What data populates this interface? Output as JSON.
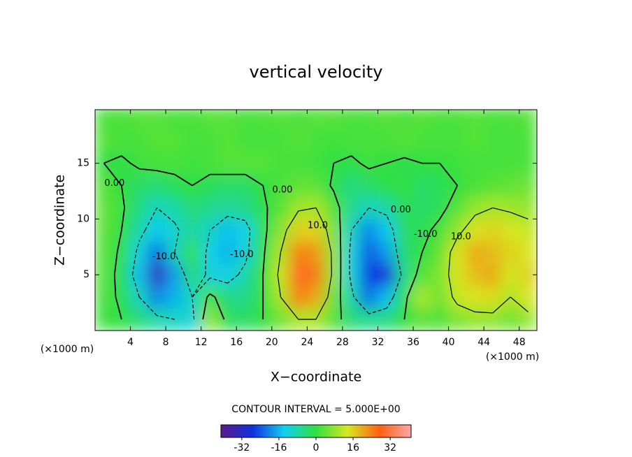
{
  "chart_data": {
    "type": "contour",
    "title": "vertical velocity",
    "x_label": "X−coordinate",
    "y_label": "Z−coordinate",
    "x_unit": "(×1000 m)",
    "y_unit": "(×1000 m)",
    "x": [
      1,
      3,
      5,
      7,
      9,
      11,
      13,
      15,
      17,
      19,
      21,
      23,
      25,
      27,
      29,
      31,
      33,
      35,
      37,
      39,
      41,
      43,
      45,
      47,
      49
    ],
    "z": [
      1,
      3,
      5,
      7,
      9,
      11,
      13,
      15,
      17,
      19
    ],
    "values": [
      [
        1,
        0,
        -4,
        -8,
        -10,
        -12,
        8,
        -2,
        -3,
        0,
        5,
        10,
        10,
        3,
        -4,
        -6,
        -5,
        0,
        4,
        2,
        6,
        8,
        8,
        5,
        8
      ],
      [
        2,
        -1,
        -10,
        -20,
        -16,
        -10,
        2,
        -5,
        -6,
        0,
        10,
        24,
        20,
        5,
        -8,
        -22,
        -15,
        -2,
        10,
        5,
        12,
        14,
        15,
        10,
        14
      ],
      [
        3,
        -2,
        -15,
        -33,
        -18,
        -4,
        -12,
        -13,
        -8,
        0,
        12,
        29,
        25,
        8,
        -12,
        -26,
        -28,
        -6,
        3,
        6,
        14,
        18,
        20,
        13,
        16
      ],
      [
        3,
        -1,
        -12,
        -22,
        -10,
        0,
        -13,
        -16,
        -12,
        -1,
        10,
        24,
        22,
        8,
        -12,
        -24,
        -18,
        -4,
        0,
        4,
        14,
        20,
        18,
        16,
        14
      ],
      [
        4,
        0,
        -8,
        -14,
        -11,
        -7,
        -10,
        -15,
        -13,
        -2,
        7,
        16,
        16,
        6,
        -10,
        -20,
        -14,
        -3,
        -2,
        2,
        8,
        14,
        16,
        14,
        12
      ],
      [
        4,
        1,
        -5,
        -10,
        -8,
        -4,
        -6,
        -7,
        -6,
        -1,
        3,
        9,
        10,
        3,
        -6,
        -10,
        -8,
        -2,
        -3,
        -2,
        3,
        8,
        10,
        9,
        8
      ],
      [
        3,
        0,
        -3,
        -4,
        -2,
        0,
        -2,
        -3,
        -3,
        0,
        2,
        4,
        4,
        -1,
        -5,
        -3,
        -1,
        0,
        -3,
        -2,
        0,
        2,
        3,
        4,
        5
      ],
      [
        0,
        -1,
        1,
        2,
        2,
        1,
        2,
        3,
        3,
        3,
        2,
        2,
        1,
        0,
        -1,
        1,
        0,
        -1,
        0,
        0,
        1,
        2,
        2,
        2,
        2
      ],
      [
        3,
        2,
        2,
        3,
        3,
        2,
        2,
        3,
        2,
        2,
        2,
        3,
        2,
        1,
        2,
        2,
        2,
        3,
        2,
        2,
        2,
        3,
        2,
        2,
        2
      ],
      [
        2,
        2,
        3,
        3,
        2,
        2,
        3,
        3,
        2,
        2,
        3,
        2,
        3,
        3,
        2,
        2,
        3,
        2,
        3,
        2,
        2,
        3,
        2,
        2,
        3
      ]
    ],
    "xlim": [
      0,
      50
    ],
    "ylim": [
      0,
      19.8
    ],
    "xticks": [
      4,
      8,
      12,
      16,
      20,
      24,
      28,
      32,
      36,
      40,
      44,
      48
    ],
    "yticks": [
      5,
      10,
      15
    ],
    "contour_levels": [
      -10,
      0,
      10
    ],
    "contour_labels": [
      {
        "text": "0.00",
        "x": 2.2,
        "y": 13.2
      },
      {
        "text": "-10.0",
        "x": 7.8,
        "y": 6.6
      },
      {
        "text": "-10.0",
        "x": 16.6,
        "y": 6.8
      },
      {
        "text": "0.00",
        "x": 21.2,
        "y": 12.6
      },
      {
        "text": "10.0",
        "x": 25.2,
        "y": 9.4
      },
      {
        "text": "0.00",
        "x": 34.6,
        "y": 10.8
      },
      {
        "text": "-10.0",
        "x": 37.4,
        "y": 8.6
      },
      {
        "text": "10.0",
        "x": 41.4,
        "y": 8.4
      }
    ],
    "contour_interval_text": "CONTOUR INTERVAL = 5.000E+00",
    "colormap": [
      "#5a1a8a",
      "#1030e0",
      "#10d0f0",
      "#30e040",
      "#d8e820",
      "#ff6010",
      "#ffa8a8"
    ],
    "colorbar_lim": [
      -41,
      41
    ],
    "colorbar_ticks": [
      -32,
      -16,
      0,
      16,
      32
    ]
  }
}
